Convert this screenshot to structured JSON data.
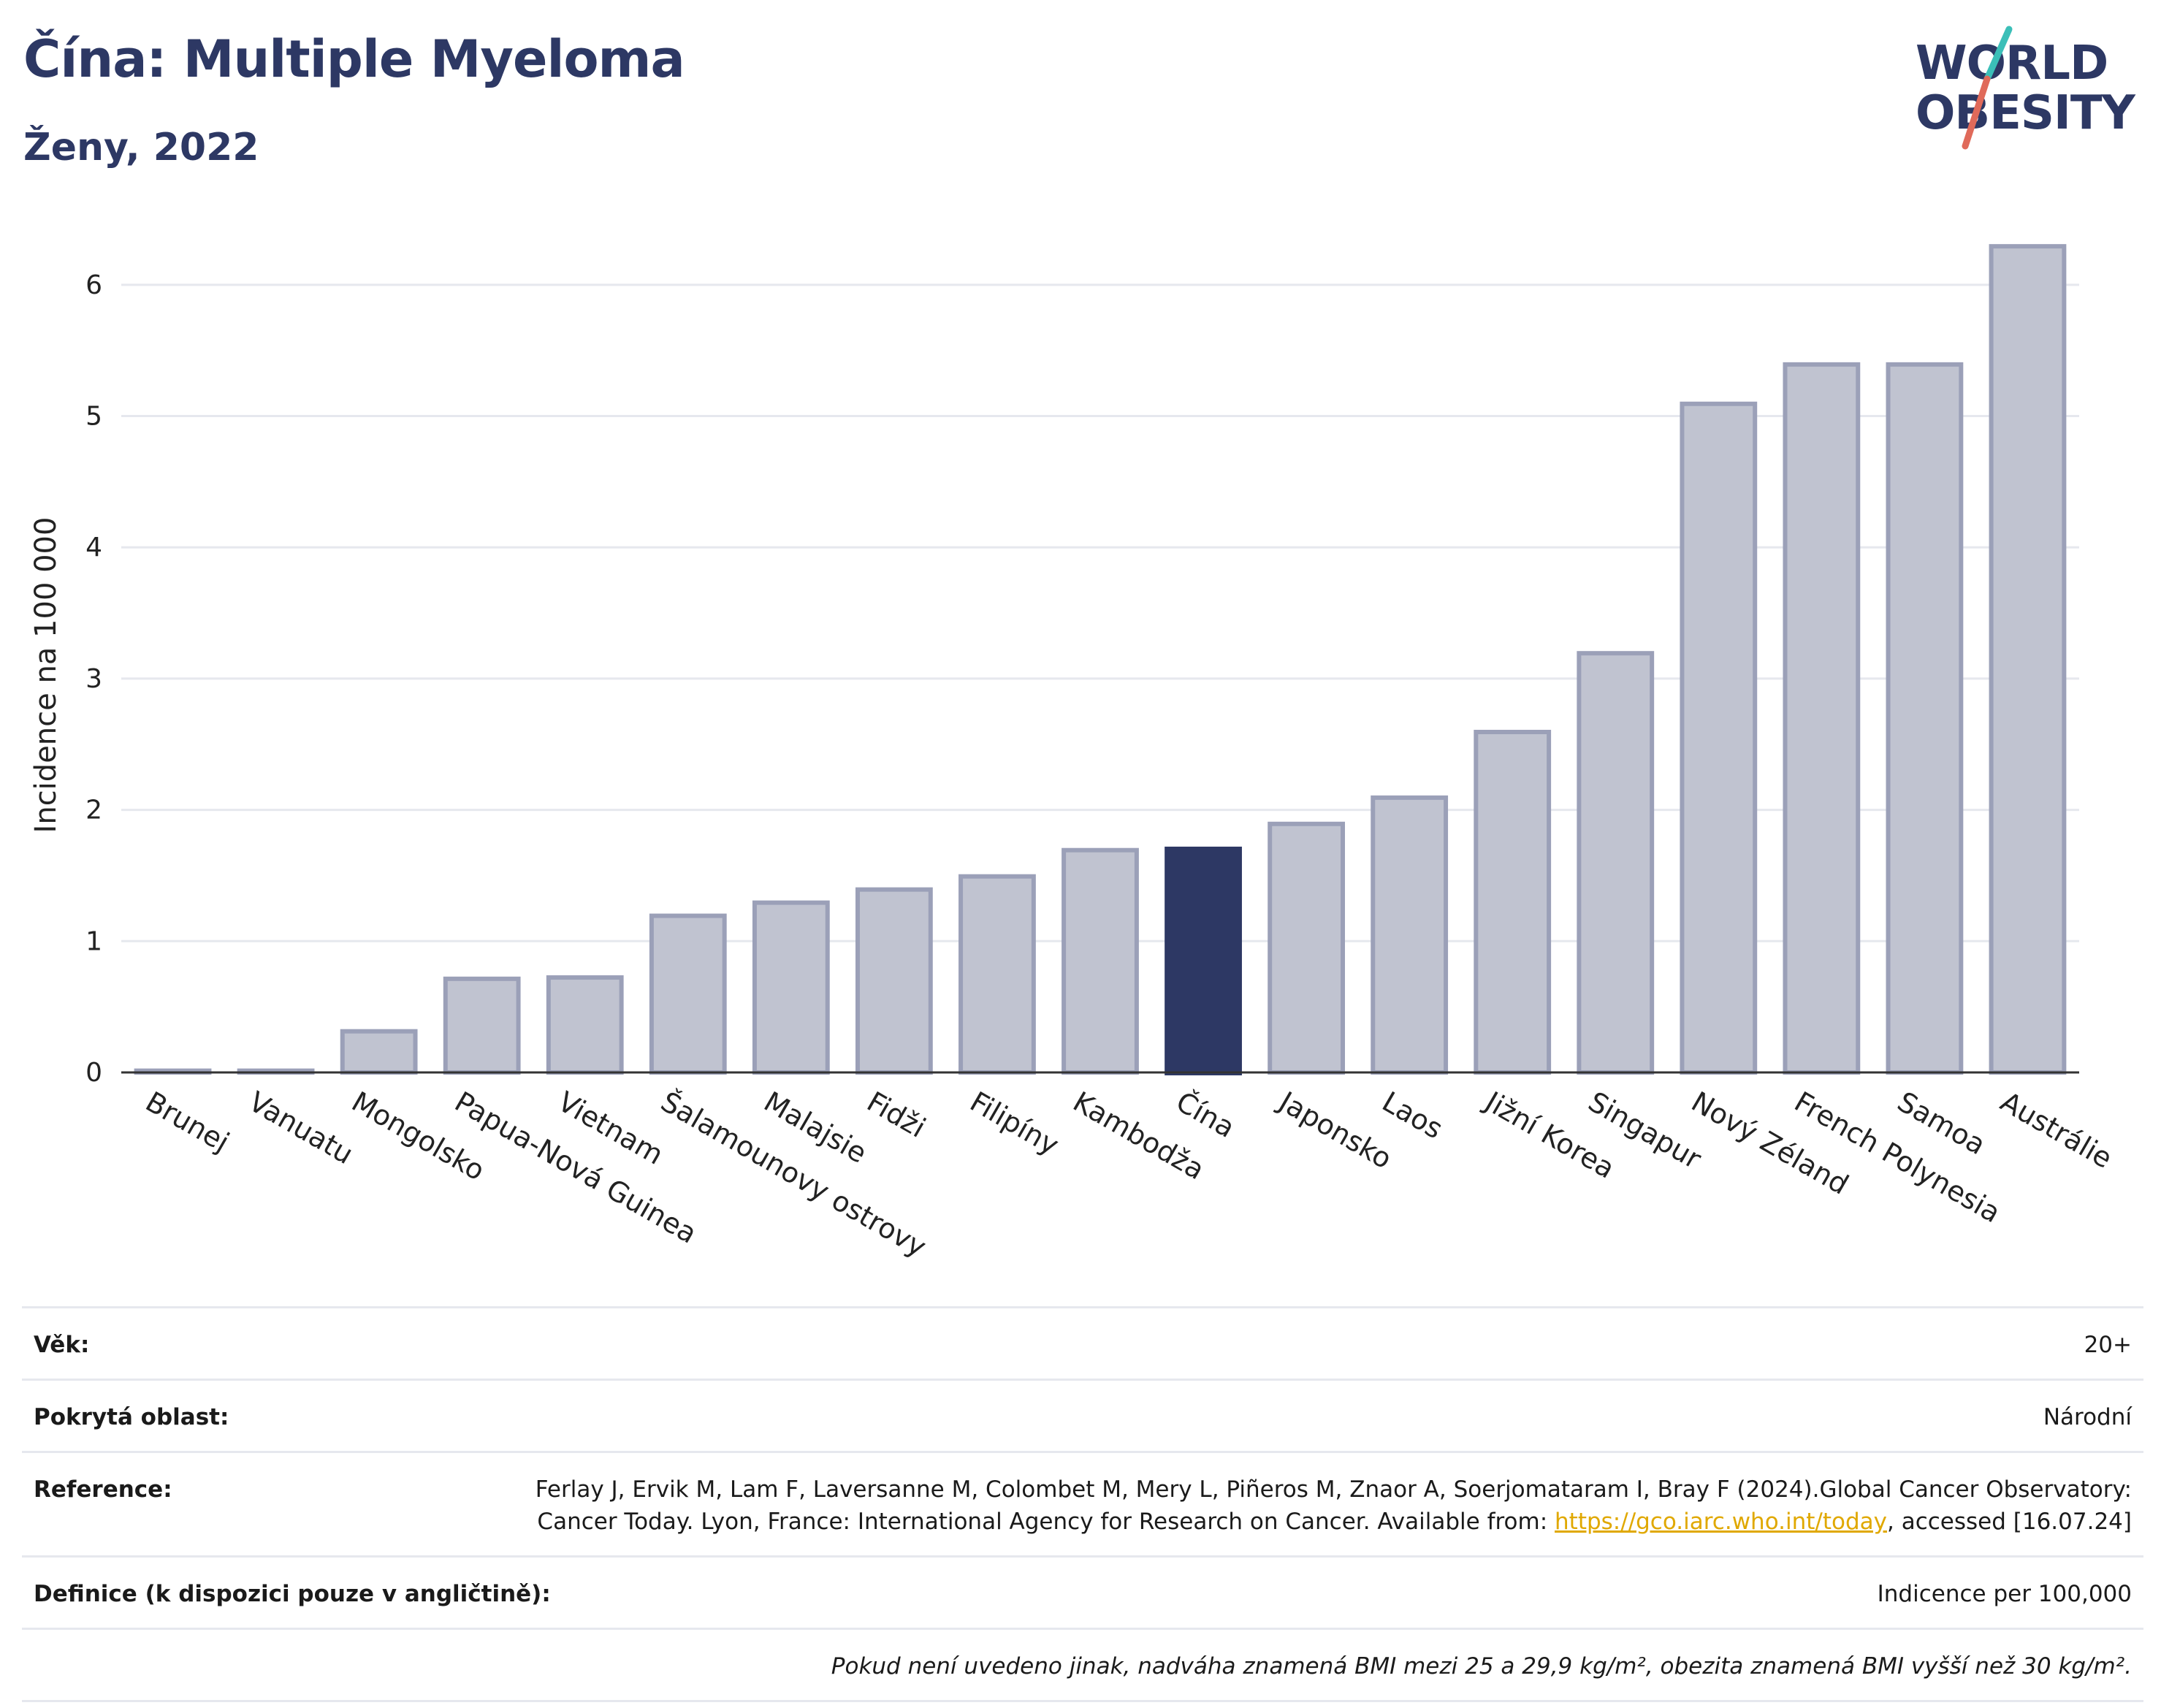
{
  "header": {
    "title": "Čína: Multiple Myeloma",
    "subtitle": "Ženy, 2022"
  },
  "logo": {
    "line1": "WORLD",
    "line2": "OBESITY",
    "colors": {
      "text": "#2d3864",
      "slash_top": "#3bbfb8",
      "slash_bottom": "#e06a5a"
    }
  },
  "chart_data": {
    "type": "bar",
    "title": "",
    "xlabel": "",
    "ylabel": "Incidence na 100 000",
    "ylim": [
      0,
      6.5
    ],
    "yticks": [
      0,
      1,
      2,
      3,
      4,
      5,
      6
    ],
    "grid": true,
    "categories": [
      "Brunej",
      "Vanuatu",
      "Mongolsko",
      "Papua-Nová Guinea",
      "Vietnam",
      "Šalamounovy ostrovy",
      "Malajsie",
      "Fidži",
      "Filipíny",
      "Kambodža",
      "Čína",
      "Japonsko",
      "Laos",
      "Jižní Korea",
      "Singapur",
      "Nový Zéland",
      "French Polynesia",
      "Samoa",
      "Austrálie"
    ],
    "values": [
      0.03,
      0.03,
      0.33,
      0.73,
      0.74,
      1.21,
      1.31,
      1.41,
      1.51,
      1.71,
      1.72,
      1.91,
      2.11,
      2.61,
      3.21,
      5.11,
      5.41,
      5.41,
      6.31
    ],
    "highlight": "Čína",
    "colors": {
      "bar": "#c0c3d0",
      "bar_edge": "#9ba0b8",
      "highlight": "#2d3864",
      "grid": "#e6e8ee",
      "axis": "#333333"
    }
  },
  "info": {
    "rows": [
      {
        "label": "Věk:",
        "value": "20+"
      },
      {
        "label": "Pokrytá oblast:",
        "value": "Národní"
      },
      {
        "label": "Reference:",
        "value_pre": "Ferlay J, Ervik M, Lam F, Laversanne M, Colombet M, Mery L, Piñeros M, Znaor A, Soerjomataram I, Bray F (2024).Global Cancer Observatory: Cancer Today. Lyon, France: International Agency for Research on Cancer. Available from: ",
        "link": "https://gco.iarc.who.int/today",
        "value_post": ", accessed [16.07.24]"
      },
      {
        "label": "Definice (k dispozici pouze v angličtině):",
        "value": "Indicence per 100,000"
      }
    ],
    "note": "Pokud není uvedeno jinak, nadváha znamená BMI mezi 25 a 29,9 kg/m², obezita znamená BMI vyšší než 30 kg/m²."
  }
}
